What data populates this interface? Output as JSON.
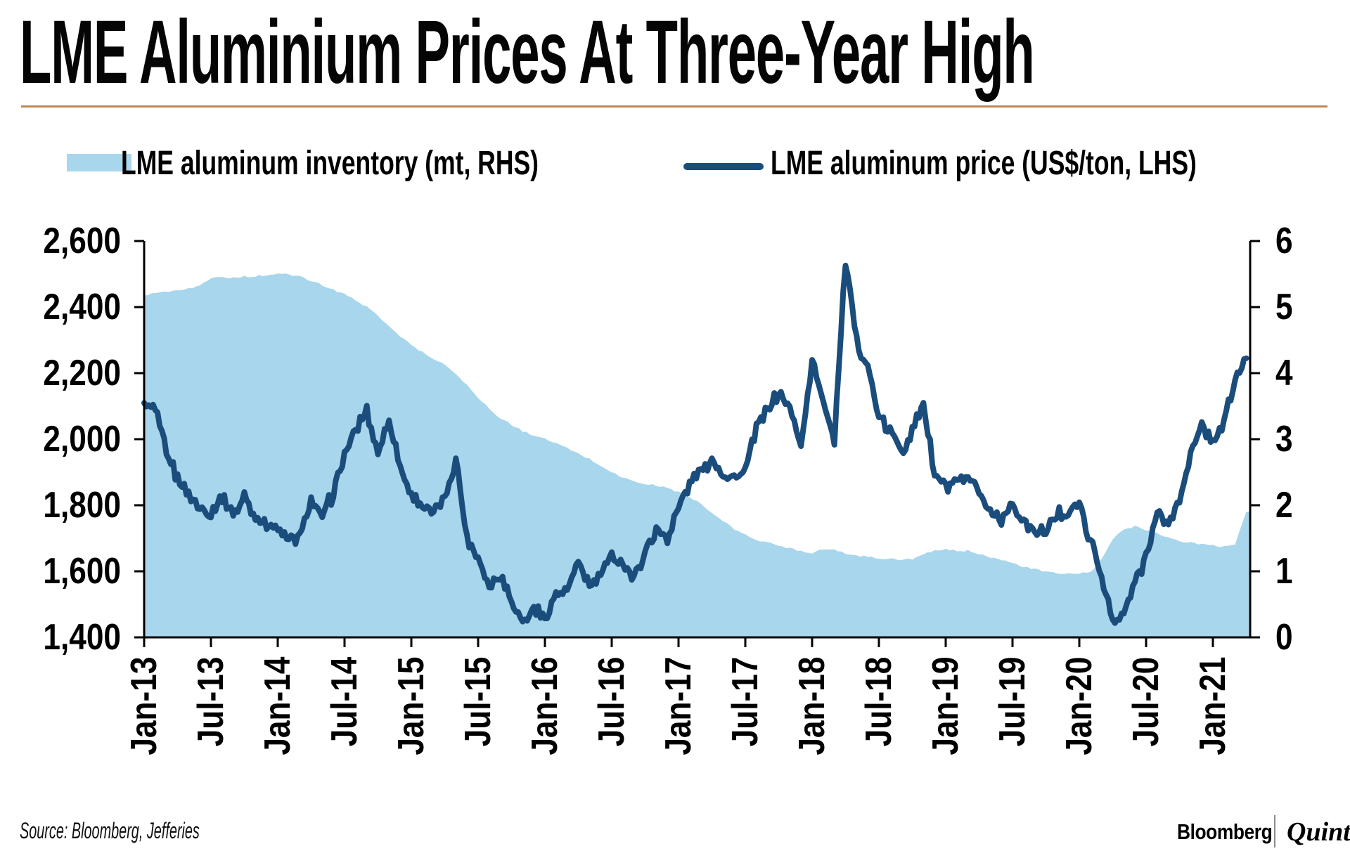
{
  "header": {
    "title": "LME Aluminium Prices At Three-Year High"
  },
  "legend": {
    "inventory": {
      "label": "LME aluminum inventory (mt, RHS)",
      "swatch_color": "#a8d6ec"
    },
    "price": {
      "label": "LME aluminum price (US$/ton, LHS)",
      "swatch_color": "#1b4d7c"
    }
  },
  "footer": {
    "source": "Source: Bloomberg, Jefferies",
    "brand_left": "Bloomberg",
    "brand_right": "Quint"
  },
  "colors": {
    "area": "#a8d6ec",
    "line": "#1b4d7c",
    "axis": "#000000",
    "title_rule": "#c08552"
  },
  "chart_data": {
    "type": "area+line",
    "grid": false,
    "legend_position": "top",
    "x_start": "Jan-13",
    "x_end": "Apr-21",
    "x_interval": "monthly",
    "x_tick_labels": [
      "Jan-13",
      "Jul-13",
      "Jan-14",
      "Jul-14",
      "Jan-15",
      "Jul-15",
      "Jan-16",
      "Jul-16",
      "Jan-17",
      "Jul-17",
      "Jan-18",
      "Jul-18",
      "Jan-19",
      "Jul-19",
      "Jan-20",
      "Jul-20",
      "Jan-21"
    ],
    "y_left": {
      "unit": "US$/ton",
      "min": 1400,
      "max": 2600,
      "ticks": [
        "2,600",
        "2,400",
        "2,200",
        "2,000",
        "1,800",
        "1,600",
        "1,400"
      ]
    },
    "y_right": {
      "unit": "mt",
      "min": 0,
      "max": 6,
      "ticks": [
        "6",
        "5",
        "4",
        "3",
        "2",
        "1",
        "0"
      ]
    },
    "series": [
      {
        "name": "LME aluminum price (US$/ton, LHS)",
        "type": "line",
        "axis": "left",
        "color": "#1b4d7c",
        "monthly_values": [
          2110,
          2090,
          1955,
          1880,
          1835,
          1790,
          1775,
          1830,
          1770,
          1825,
          1760,
          1745,
          1730,
          1695,
          1705,
          1815,
          1760,
          1840,
          1950,
          2030,
          2085,
          1960,
          2055,
          1915,
          1830,
          1800,
          1775,
          1820,
          1945,
          1700,
          1645,
          1550,
          1590,
          1515,
          1445,
          1490,
          1455,
          1530,
          1545,
          1620,
          1555,
          1590,
          1640,
          1635,
          1570,
          1660,
          1730,
          1705,
          1790,
          1865,
          1905,
          1940,
          1900,
          1880,
          1910,
          2035,
          2090,
          2140,
          2090,
          1980,
          2230,
          2120,
          2000,
          2540,
          2300,
          2220,
          2060,
          2020,
          1970,
          2020,
          2110,
          1890,
          1850,
          1870,
          1875,
          1845,
          1780,
          1760,
          1805,
          1745,
          1720,
          1715,
          1770,
          1785,
          1800,
          1690,
          1590,
          1440,
          1470,
          1565,
          1645,
          1775,
          1745,
          1815,
          1960,
          2040,
          1990,
          2050,
          2180,
          2245
        ]
      },
      {
        "name": "LME aluminum inventory (mt, RHS)",
        "type": "area",
        "axis": "right",
        "color": "#a8d6ec",
        "monthly_values": [
          5.18,
          5.22,
          5.24,
          5.26,
          5.28,
          5.32,
          5.44,
          5.46,
          5.44,
          5.46,
          5.47,
          5.48,
          5.5,
          5.49,
          5.46,
          5.4,
          5.33,
          5.26,
          5.2,
          5.1,
          5.0,
          4.87,
          4.72,
          4.56,
          4.42,
          4.32,
          4.22,
          4.12,
          4.0,
          3.82,
          3.62,
          3.46,
          3.32,
          3.22,
          3.12,
          3.06,
          3.0,
          2.94,
          2.86,
          2.78,
          2.7,
          2.6,
          2.5,
          2.42,
          2.36,
          2.32,
          2.3,
          2.26,
          2.2,
          2.12,
          2.02,
          1.88,
          1.76,
          1.64,
          1.55,
          1.48,
          1.43,
          1.39,
          1.35,
          1.31,
          1.28,
          1.34,
          1.32,
          1.27,
          1.24,
          1.22,
          1.2,
          1.19,
          1.17,
          1.19,
          1.25,
          1.31,
          1.33,
          1.31,
          1.31,
          1.27,
          1.22,
          1.17,
          1.12,
          1.07,
          1.03,
          0.99,
          0.97,
          0.96,
          0.97,
          0.98,
          1.18,
          1.48,
          1.64,
          1.68,
          1.63,
          1.58,
          1.51,
          1.46,
          1.43,
          1.41,
          1.39,
          1.37,
          1.42,
          1.9
        ]
      }
    ]
  }
}
